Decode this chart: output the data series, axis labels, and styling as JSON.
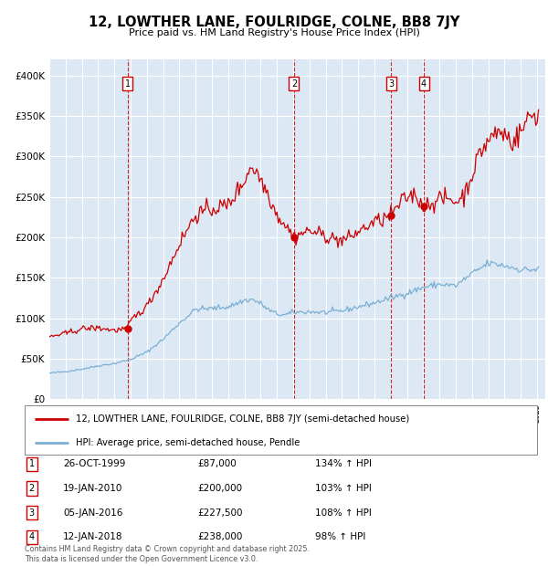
{
  "title": "12, LOWTHER LANE, FOULRIDGE, COLNE, BB8 7JY",
  "subtitle": "Price paid vs. HM Land Registry's House Price Index (HPI)",
  "ylim": [
    0,
    420000
  ],
  "yticks": [
    0,
    50000,
    100000,
    150000,
    200000,
    250000,
    300000,
    350000,
    400000
  ],
  "ytick_labels": [
    "£0",
    "£50K",
    "£100K",
    "£150K",
    "£200K",
    "£250K",
    "£300K",
    "£350K",
    "£400K"
  ],
  "xlim_start": 1995.0,
  "xlim_end": 2025.5,
  "plot_background": "#dce9f5",
  "red_line_color": "#cc0000",
  "blue_line_color": "#7aafd4",
  "transactions": [
    {
      "num": 1,
      "date": "26-OCT-1999",
      "year": 1999.82,
      "price": 87000,
      "pct": "134%",
      "dir": "↑"
    },
    {
      "num": 2,
      "date": "19-JAN-2010",
      "year": 2010.05,
      "price": 200000,
      "pct": "103%",
      "dir": "↑"
    },
    {
      "num": 3,
      "date": "05-JAN-2016",
      "year": 2016.02,
      "price": 227500,
      "pct": "108%",
      "dir": "↑"
    },
    {
      "num": 4,
      "date": "12-JAN-2018",
      "year": 2018.03,
      "price": 238000,
      "pct": "98%",
      "dir": "↑"
    }
  ],
  "legend_line1": "12, LOWTHER LANE, FOULRIDGE, COLNE, BB8 7JY (semi-detached house)",
  "legend_line2": "HPI: Average price, semi-detached house, Pendle",
  "footer": "Contains HM Land Registry data © Crown copyright and database right 2025.\nThis data is licensed under the Open Government Licence v3.0."
}
